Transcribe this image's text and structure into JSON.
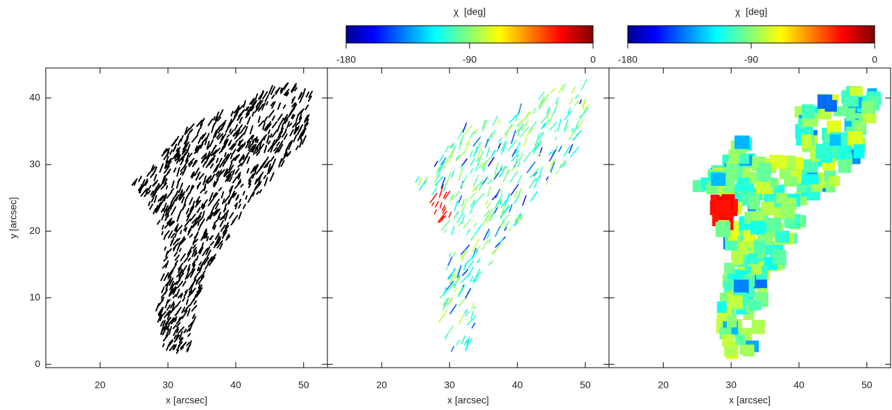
{
  "chart_data": [
    {
      "type": "image",
      "xlabel": "x [arcsec]",
      "ylabel": "y [arcsec]",
      "xlim": [
        12,
        53.5
      ],
      "ylim": [
        -0.5,
        44.5
      ],
      "xticks": [
        20,
        30,
        40,
        50
      ],
      "yticks": [
        0,
        10,
        20,
        30,
        40
      ],
      "color": "#000000"
    },
    {
      "type": "image",
      "xlabel": "x [arcsec]",
      "xlim": [
        12,
        53.5
      ],
      "ylim": [
        -0.5,
        44.5
      ],
      "xticks": [
        20,
        30,
        40,
        50
      ],
      "yticks": [
        0,
        10,
        20,
        30,
        40
      ],
      "colormap": "jet",
      "colorbar": {
        "label": "χ  [deg]",
        "lim": [
          -180,
          0
        ],
        "ticks": [
          -180,
          -90,
          0
        ]
      }
    },
    {
      "type": "image",
      "xlabel": "x [arcsec]",
      "xlim": [
        12,
        53.5
      ],
      "ylim": [
        -0.5,
        44.5
      ],
      "xticks": [
        20,
        30,
        40,
        50
      ],
      "yticks": [
        0,
        10,
        20,
        30,
        40
      ],
      "colormap": "jet",
      "colorbar": {
        "label": "χ  [deg]",
        "lim": [
          -180,
          0
        ],
        "ticks": [
          -180,
          -90,
          0
        ]
      }
    }
  ]
}
